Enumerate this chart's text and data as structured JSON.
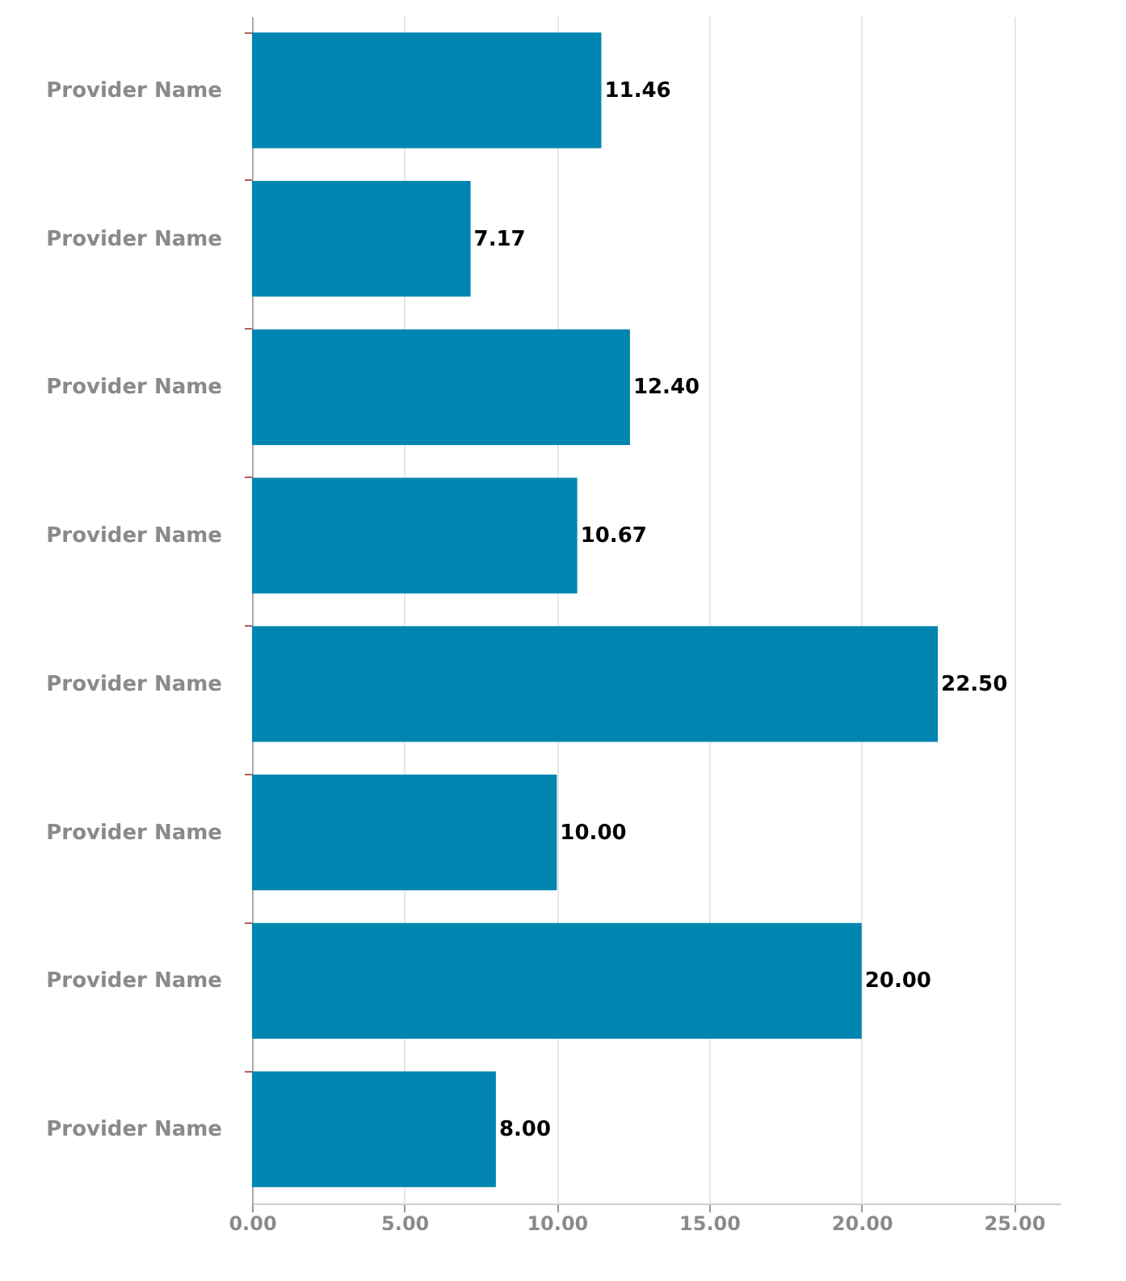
{
  "chart_data": {
    "type": "bar",
    "orientation": "horizontal",
    "categories": [
      "Provider Name",
      "Provider Name",
      "Provider Name",
      "Provider Name",
      "Provider Name",
      "Provider Name",
      "Provider Name",
      "Provider Name"
    ],
    "values": [
      11.46,
      7.17,
      12.4,
      10.67,
      22.5,
      10.0,
      20.0,
      8.0
    ],
    "value_labels": [
      "11.46",
      "7.17",
      "12.40",
      "10.67",
      "22.50",
      "10.00",
      "20.00",
      "8.00"
    ],
    "color": "#0086b0",
    "xlim": [
      0,
      26.5
    ],
    "xticks": [
      {
        "value": 0,
        "label": "0.00"
      },
      {
        "value": 5,
        "label": "5.00"
      },
      {
        "value": 10,
        "label": "10.00"
      },
      {
        "value": 15,
        "label": "15.00"
      },
      {
        "value": 20,
        "label": "20.00"
      },
      {
        "value": 25,
        "label": "25.00"
      }
    ],
    "grid": "x"
  }
}
